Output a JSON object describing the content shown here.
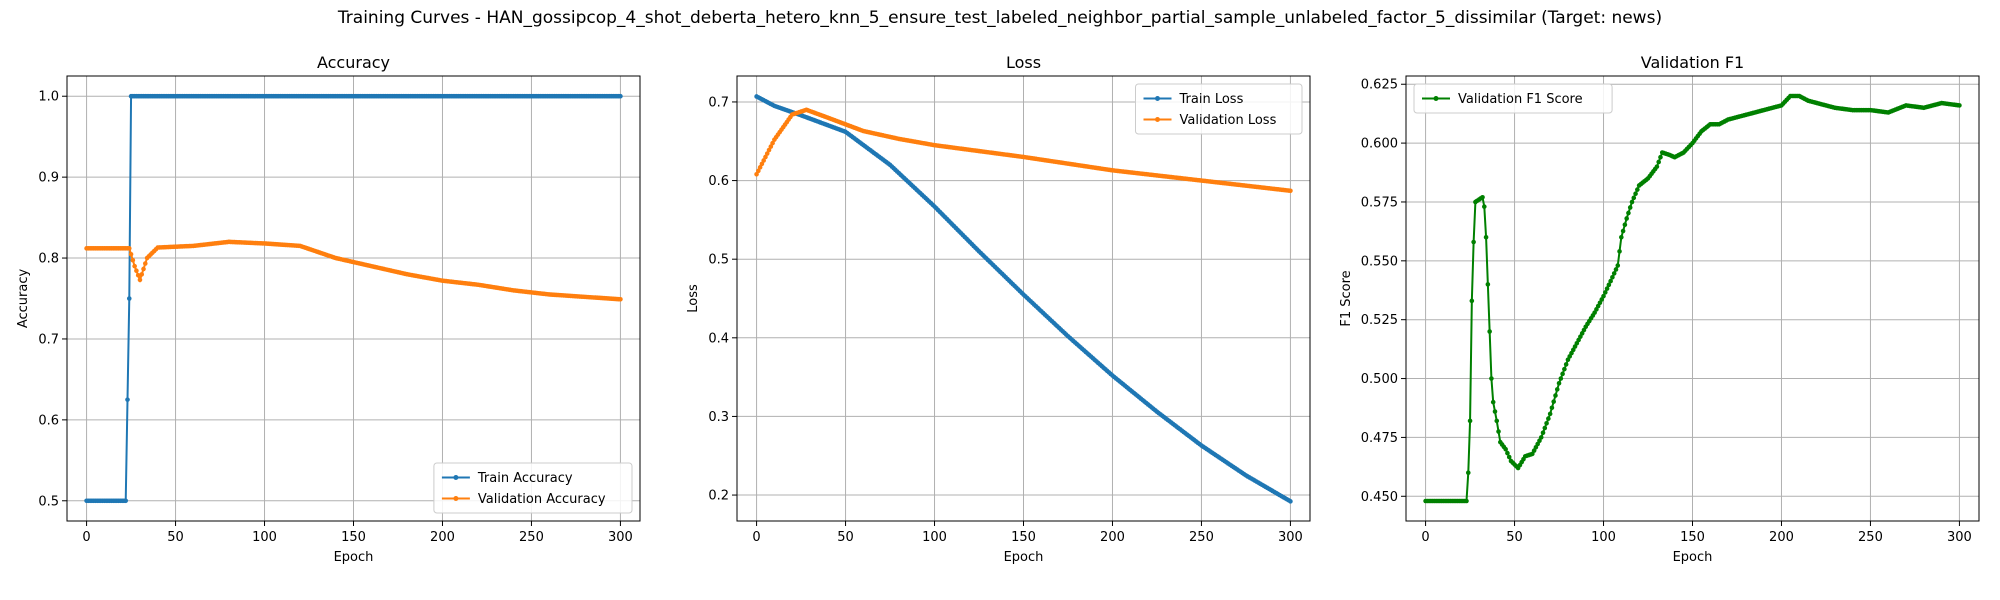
{
  "figure": {
    "suptitle": "Training Curves - HAN_gossipcop_4_shot_deberta_hetero_knn_5_ensure_test_labeled_neighbor_partial_sample_unlabeled_factor_5_dissimilar (Target: news)"
  },
  "colors": {
    "blue": "#1f77b4",
    "orange": "#ff7f0e",
    "green": "#008000",
    "grid": "#b0b0b0"
  },
  "chart_data": [
    {
      "type": "line",
      "title": "Accuracy",
      "xlabel": "Epoch",
      "ylabel": "Accuracy",
      "xlim": [
        -11,
        311
      ],
      "ylim": [
        0.475,
        1.025
      ],
      "xticks": [
        0,
        50,
        100,
        150,
        200,
        250,
        300
      ],
      "yticks": [
        0.5,
        0.6,
        0.7,
        0.8,
        0.9,
        1.0
      ],
      "ytick_labels": [
        "0.5",
        "0.6",
        "0.7",
        "0.8",
        "0.9",
        "1.0"
      ],
      "grid": true,
      "legend": "lower right",
      "series": [
        {
          "name": "Train Accuracy",
          "color": "#1f77b4",
          "points": [
            [
              0,
              0.5
            ],
            [
              22,
              0.5
            ],
            [
              23,
              0.625
            ],
            [
              24,
              0.75
            ],
            [
              25,
              1.0
            ],
            [
              300,
              1.0
            ]
          ]
        },
        {
          "name": "Validation Accuracy",
          "color": "#ff7f0e",
          "points": [
            [
              0,
              0.812
            ],
            [
              24,
              0.812
            ],
            [
              27,
              0.79
            ],
            [
              30,
              0.773
            ],
            [
              34,
              0.8
            ],
            [
              40,
              0.813
            ],
            [
              60,
              0.815
            ],
            [
              80,
              0.82
            ],
            [
              100,
              0.818
            ],
            [
              120,
              0.815
            ],
            [
              140,
              0.8
            ],
            [
              160,
              0.79
            ],
            [
              180,
              0.78
            ],
            [
              200,
              0.772
            ],
            [
              220,
              0.767
            ],
            [
              240,
              0.76
            ],
            [
              260,
              0.755
            ],
            [
              280,
              0.752
            ],
            [
              300,
              0.749
            ]
          ]
        }
      ]
    },
    {
      "type": "line",
      "title": "Loss",
      "xlabel": "Epoch",
      "ylabel": "Loss",
      "xlim": [
        -11,
        311
      ],
      "ylim": [
        0.167,
        0.733
      ],
      "xticks": [
        0,
        50,
        100,
        150,
        200,
        250,
        300
      ],
      "yticks": [
        0.2,
        0.3,
        0.4,
        0.5,
        0.6,
        0.7
      ],
      "ytick_labels": [
        "0.2",
        "0.3",
        "0.4",
        "0.5",
        "0.6",
        "0.7"
      ],
      "grid": true,
      "legend": "upper right",
      "series": [
        {
          "name": "Train Loss",
          "color": "#1f77b4",
          "points": [
            [
              0,
              0.707
            ],
            [
              10,
              0.695
            ],
            [
              25,
              0.683
            ],
            [
              50,
              0.662
            ],
            [
              75,
              0.62
            ],
            [
              100,
              0.567
            ],
            [
              125,
              0.51
            ],
            [
              150,
              0.455
            ],
            [
              175,
              0.402
            ],
            [
              200,
              0.352
            ],
            [
              225,
              0.306
            ],
            [
              250,
              0.263
            ],
            [
              275,
              0.225
            ],
            [
              300,
              0.192
            ]
          ]
        },
        {
          "name": "Validation Loss",
          "color": "#ff7f0e",
          "points": [
            [
              0,
              0.608
            ],
            [
              10,
              0.652
            ],
            [
              20,
              0.684
            ],
            [
              28,
              0.69
            ],
            [
              40,
              0.68
            ],
            [
              60,
              0.663
            ],
            [
              80,
              0.653
            ],
            [
              100,
              0.645
            ],
            [
              150,
              0.63
            ],
            [
              200,
              0.613
            ],
            [
              250,
              0.6
            ],
            [
              300,
              0.587
            ]
          ]
        }
      ]
    },
    {
      "type": "line",
      "title": "Validation F1",
      "xlabel": "Epoch",
      "ylabel": "F1 Score",
      "xlim": [
        -11,
        311
      ],
      "ylim": [
        0.4395,
        0.6285
      ],
      "xticks": [
        0,
        50,
        100,
        150,
        200,
        250,
        300
      ],
      "yticks": [
        0.45,
        0.475,
        0.5,
        0.525,
        0.55,
        0.575,
        0.6,
        0.625
      ],
      "ytick_labels": [
        "0.450",
        "0.475",
        "0.500",
        "0.525",
        "0.550",
        "0.575",
        "0.600",
        "0.625"
      ],
      "grid": true,
      "legend": "upper left",
      "series": [
        {
          "name": "Validation F1 Score",
          "color": "#008000",
          "points": [
            [
              0,
              0.448
            ],
            [
              23,
              0.448
            ],
            [
              24,
              0.46
            ],
            [
              25,
              0.482
            ],
            [
              26,
              0.533
            ],
            [
              27,
              0.558
            ],
            [
              28,
              0.575
            ],
            [
              30,
              0.576
            ],
            [
              32,
              0.577
            ],
            [
              33,
              0.573
            ],
            [
              34,
              0.56
            ],
            [
              35,
              0.54
            ],
            [
              36,
              0.52
            ],
            [
              37,
              0.5
            ],
            [
              38,
              0.49
            ],
            [
              40,
              0.482
            ],
            [
              42,
              0.473
            ],
            [
              45,
              0.47
            ],
            [
              48,
              0.465
            ],
            [
              52,
              0.462
            ],
            [
              56,
              0.467
            ],
            [
              60,
              0.468
            ],
            [
              65,
              0.475
            ],
            [
              70,
              0.485
            ],
            [
              75,
              0.498
            ],
            [
              80,
              0.508
            ],
            [
              85,
              0.515
            ],
            [
              90,
              0.522
            ],
            [
              95,
              0.528
            ],
            [
              100,
              0.535
            ],
            [
              105,
              0.543
            ],
            [
              108,
              0.548
            ],
            [
              110,
              0.56
            ],
            [
              113,
              0.568
            ],
            [
              116,
              0.575
            ],
            [
              120,
              0.582
            ],
            [
              125,
              0.585
            ],
            [
              130,
              0.59
            ],
            [
              133,
              0.596
            ],
            [
              137,
              0.595
            ],
            [
              140,
              0.594
            ],
            [
              145,
              0.596
            ],
            [
              150,
              0.6
            ],
            [
              155,
              0.605
            ],
            [
              160,
              0.608
            ],
            [
              165,
              0.608
            ],
            [
              170,
              0.61
            ],
            [
              180,
              0.612
            ],
            [
              190,
              0.614
            ],
            [
              200,
              0.616
            ],
            [
              205,
              0.62
            ],
            [
              210,
              0.62
            ],
            [
              215,
              0.618
            ],
            [
              220,
              0.617
            ],
            [
              230,
              0.615
            ],
            [
              240,
              0.614
            ],
            [
              250,
              0.614
            ],
            [
              260,
              0.613
            ],
            [
              270,
              0.616
            ],
            [
              280,
              0.615
            ],
            [
              290,
              0.617
            ],
            [
              300,
              0.616
            ]
          ]
        }
      ]
    }
  ]
}
